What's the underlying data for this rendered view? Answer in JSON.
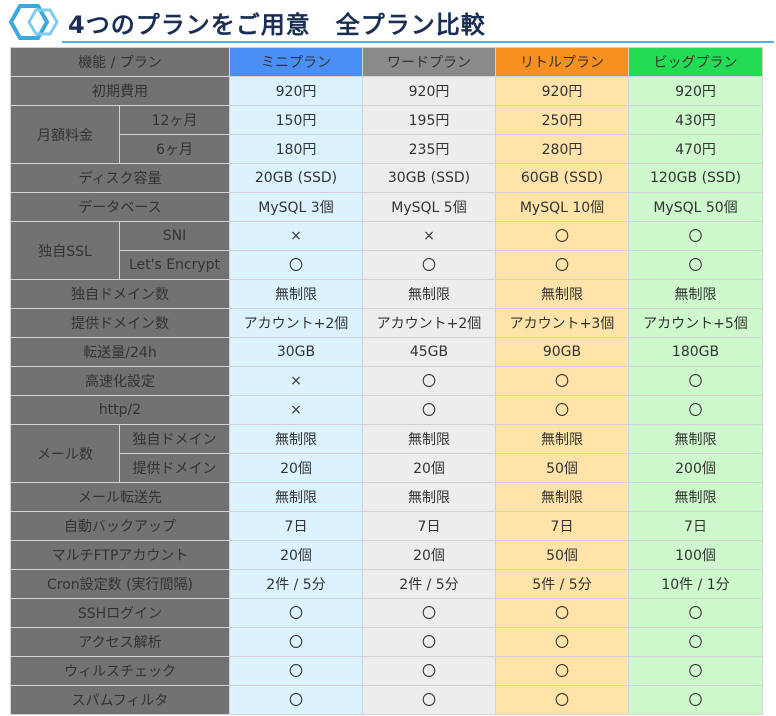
{
  "title": "4つのプランをご用意　全プラン比較",
  "colors": {
    "title_text": "#1b2f54",
    "label_bg": "#727272",
    "mini_header": "#4a8ff5",
    "mini_cell": "#dbf3ff",
    "word_header": "#8a8a8a",
    "word_cell": "#ededed",
    "little_header": "#f6901f",
    "little_cell": "#ffe3a8",
    "big_header": "#23dc53",
    "big_cell": "#cdf9cd"
  },
  "table": {
    "header": {
      "label": "機能 / プラン",
      "plans": [
        "ミニプラン",
        "ワードプラン",
        "リトルプラン",
        "ビッグプラン"
      ]
    },
    "rows": [
      {
        "group": "初期費用",
        "values": [
          "920円",
          "920円",
          "920円",
          "920円"
        ]
      },
      {
        "group": "月額料金",
        "sub": "12ヶ月",
        "values": [
          "150円",
          "195円",
          "250円",
          "430円"
        ]
      },
      {
        "sub": "6ヶ月",
        "values": [
          "180円",
          "235円",
          "280円",
          "470円"
        ]
      },
      {
        "group": "ディスク容量",
        "values": [
          "20GB (SSD)",
          "30GB (SSD)",
          "60GB (SSD)",
          "120GB (SSD)"
        ]
      },
      {
        "group": "データベース",
        "values": [
          "MySQL 3個",
          "MySQL 5個",
          "MySQL 10個",
          "MySQL 50個"
        ]
      },
      {
        "group": "独自SSL",
        "sub": "SNI",
        "values": [
          "×",
          "×",
          "〇",
          "〇"
        ]
      },
      {
        "sub": "Let's Encrypt",
        "values": [
          "〇",
          "〇",
          "〇",
          "〇"
        ]
      },
      {
        "group": "独自ドメイン数",
        "values": [
          "無制限",
          "無制限",
          "無制限",
          "無制限"
        ]
      },
      {
        "group": "提供ドメイン数",
        "values": [
          "アカウント+2個",
          "アカウント+2個",
          "アカウント+3個",
          "アカウント+5個"
        ]
      },
      {
        "group": "転送量/24h",
        "values": [
          "30GB",
          "45GB",
          "90GB",
          "180GB"
        ]
      },
      {
        "group": "高速化設定",
        "values": [
          "×",
          "〇",
          "〇",
          "〇"
        ]
      },
      {
        "group": "http/2",
        "values": [
          "×",
          "〇",
          "〇",
          "〇"
        ]
      },
      {
        "group": "メール数",
        "sub": "独自ドメイン",
        "values": [
          "無制限",
          "無制限",
          "無制限",
          "無制限"
        ]
      },
      {
        "sub": "提供ドメイン",
        "values": [
          "20個",
          "20個",
          "50個",
          "200個"
        ]
      },
      {
        "group": "メール転送先",
        "values": [
          "無制限",
          "無制限",
          "無制限",
          "無制限"
        ]
      },
      {
        "group": "自動バックアップ",
        "values": [
          "7日",
          "7日",
          "7日",
          "7日"
        ]
      },
      {
        "group": "マルチFTPアカウント",
        "values": [
          "20個",
          "20個",
          "50個",
          "100個"
        ]
      },
      {
        "group": "Cron設定数 (実行間隔)",
        "values": [
          "2件 / 5分",
          "2件 / 5分",
          "5件 / 5分",
          "10件 / 1分"
        ]
      },
      {
        "group": "SSHログイン",
        "values": [
          "〇",
          "〇",
          "〇",
          "〇"
        ]
      },
      {
        "group": "アクセス解析",
        "values": [
          "〇",
          "〇",
          "〇",
          "〇"
        ]
      },
      {
        "group": "ウィルスチェック",
        "values": [
          "〇",
          "〇",
          "〇",
          "〇"
        ]
      },
      {
        "group": "スパムフィルタ",
        "values": [
          "〇",
          "〇",
          "〇",
          "〇"
        ]
      }
    ]
  }
}
